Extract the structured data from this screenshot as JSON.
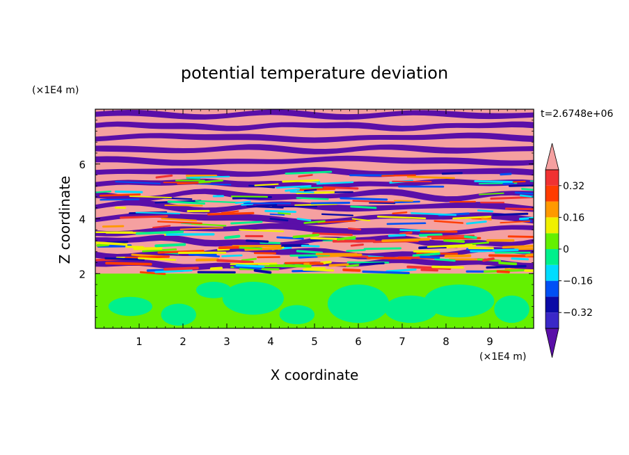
{
  "chart_data": {
    "type": "heatmap",
    "title": "potential temperature deviation",
    "xlabel": "X coordinate",
    "ylabel": "Z coordinate",
    "x_unit": "(×1E4 m)",
    "y_unit": "(×1E4 m)",
    "time_label": "t=2.6748e+06",
    "xlim": [
      0,
      10
    ],
    "ylim": [
      0,
      8
    ],
    "x_ticks": [
      "1",
      "2",
      "3",
      "4",
      "5",
      "6",
      "7",
      "8",
      "9"
    ],
    "y_ticks": [
      "2",
      "4",
      "6"
    ],
    "colorbar": {
      "levels": [
        -0.4,
        -0.32,
        -0.24,
        -0.16,
        -0.08,
        0,
        0.08,
        0.16,
        0.24,
        0.32,
        0.4
      ],
      "labels": [
        "0.32",
        "0.16",
        "0",
        "−0.16",
        "−0.32"
      ],
      "label_values": [
        0.32,
        0.16,
        0,
        -0.16,
        -0.32
      ],
      "colors": [
        "#5a0fa8",
        "#3a28c8",
        "#0a0aa6",
        "#0050f5",
        "#00dcff",
        "#00f08c",
        "#64f000",
        "#f0f000",
        "#ff9900",
        "#ff3c00",
        "#f03232",
        "#f5a0a0"
      ]
    },
    "description_regions": {
      "lower_layer_z": [
        0,
        2
      ],
      "lower_layer_values": "near 0 (mix of 0 and +0.08)",
      "upper_layer_z": [
        2,
        8
      ],
      "upper_layer_values": "alternating layers of about −0.4 and +0.4"
    }
  }
}
